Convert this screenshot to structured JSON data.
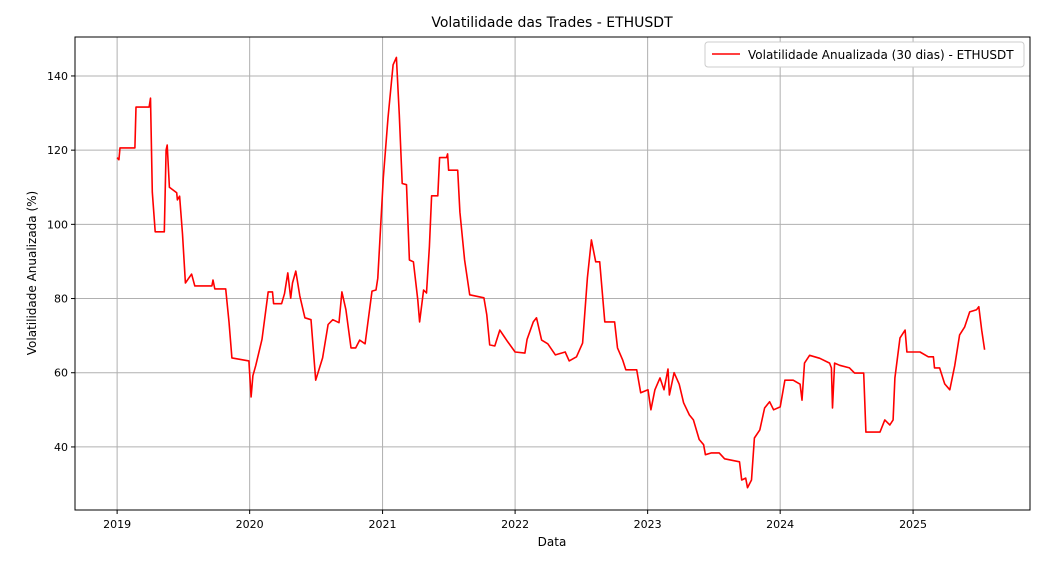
{
  "chart_data": {
    "type": "line",
    "title": "Volatilidade das Trades - ETHUSDT",
    "xlabel": "Data",
    "ylabel": "Volatilidade Anualizada (%)",
    "xlim": [
      "2018-09-07",
      "2025-11-19"
    ],
    "ylim": [
      23,
      150.5
    ],
    "x_ticks": [
      "2019",
      "2020",
      "2021",
      "2022",
      "2023",
      "2024",
      "2025"
    ],
    "y_ticks": [
      40,
      60,
      80,
      100,
      120,
      140
    ],
    "grid": true,
    "legend_position": "top-right",
    "series": [
      {
        "name": "Volatilidade Anualizada (30 dias) - ETHUSDT",
        "color": "#ff0000",
        "x": [
          "2019-01-01",
          "2019-01-06",
          "2019-01-09",
          "2019-02-19",
          "2019-02-22",
          "2019-03-30",
          "2019-04-03",
          "2019-04-08",
          "2019-04-16",
          "2019-05-11",
          "2019-05-16",
          "2019-05-19",
          "2019-05-25",
          "2019-06-14",
          "2019-06-16",
          "2019-06-22",
          "2019-06-30",
          "2019-07-08",
          "2019-07-25",
          "2019-08-03",
          "2019-09-19",
          "2019-09-22",
          "2019-09-27",
          "2019-10-27",
          "2019-11-05",
          "2019-11-13",
          "2019-12-30",
          "2020-01-05",
          "2020-01-10",
          "2020-01-18",
          "2020-02-04",
          "2020-02-21",
          "2020-03-04",
          "2020-03-07",
          "2020-03-29",
          "2020-04-06",
          "2020-04-15",
          "2020-04-23",
          "2020-04-28",
          "2020-05-07",
          "2020-05-18",
          "2020-06-01",
          "2020-06-18",
          "2020-07-01",
          "2020-07-20",
          "2020-08-04",
          "2020-08-17",
          "2020-09-03",
          "2020-09-11",
          "2020-09-22",
          "2020-10-06",
          "2020-10-19",
          "2020-10-30",
          "2020-11-14",
          "2020-12-03",
          "2020-12-14",
          "2020-12-19",
          "2021-01-03",
          "2021-01-16",
          "2021-01-30",
          "2021-02-08",
          "2021-02-16",
          "2021-02-24",
          "2021-03-08",
          "2021-03-16",
          "2021-03-27",
          "2021-04-08",
          "2021-04-13",
          "2021-04-24",
          "2021-05-02",
          "2021-05-10",
          "2021-05-16",
          "2021-06-02",
          "2021-06-07",
          "2021-06-26",
          "2021-06-29",
          "2021-07-02",
          "2021-07-27",
          "2021-08-02",
          "2021-08-15",
          "2021-08-29",
          "2021-10-07",
          "2021-10-15",
          "2021-10-23",
          "2021-11-06",
          "2021-11-20",
          "2021-12-01",
          "2021-12-12",
          "2022-01-01",
          "2022-01-28",
          "2022-02-03",
          "2022-02-20",
          "2022-03-01",
          "2022-03-15",
          "2022-04-01",
          "2022-04-22",
          "2022-05-19",
          "2022-05-30",
          "2022-06-19",
          "2022-07-06",
          "2022-07-19",
          "2022-07-30",
          "2022-08-11",
          "2022-08-22",
          "2022-09-05",
          "2022-10-02",
          "2022-10-10",
          "2022-10-24",
          "2022-11-02",
          "2022-12-02",
          "2022-12-13",
          "2023-01-02",
          "2023-01-10",
          "2023-01-21",
          "2023-02-04",
          "2023-02-15",
          "2023-02-26",
          "2023-03-02",
          "2023-03-15",
          "2023-03-29",
          "2023-04-10",
          "2023-04-26",
          "2023-05-07",
          "2023-05-23",
          "2023-06-04",
          "2023-06-09",
          "2023-06-26",
          "2023-07-17",
          "2023-08-01",
          "2023-09-11",
          "2023-09-17",
          "2023-09-28",
          "2023-10-03",
          "2023-10-14",
          "2023-10-22",
          "2023-11-06",
          "2023-11-19",
          "2023-12-03",
          "2023-12-14",
          "2024-01-01",
          "2024-01-14",
          "2024-02-06",
          "2024-02-25",
          "2024-03-01",
          "2024-03-08",
          "2024-03-22",
          "2024-04-19",
          "2024-05-16",
          "2024-05-21",
          "2024-05-24",
          "2024-05-30",
          "2024-06-13",
          "2024-07-10",
          "2024-07-24",
          "2024-08-18",
          "2024-08-24",
          "2024-10-02",
          "2024-10-15",
          "2024-10-29",
          "2024-11-07",
          "2024-11-12",
          "2024-11-26",
          "2024-12-10",
          "2024-12-15",
          "2025-01-20",
          "2025-02-12",
          "2025-02-26",
          "2025-03-01",
          "2025-03-15",
          "2025-03-29",
          "2025-04-12",
          "2025-04-26",
          "2025-05-09",
          "2025-05-23",
          "2025-06-06",
          "2025-06-25",
          "2025-07-01",
          "2025-07-09",
          "2025-07-17"
        ],
        "y": [
          118,
          117.4,
          120.6,
          120.6,
          131.6,
          131.6,
          134,
          108.7,
          98,
          98,
          120,
          121.4,
          110,
          108.5,
          106.6,
          107.6,
          97.4,
          84.2,
          86.6,
          83.4,
          83.4,
          85,
          82.6,
          82.6,
          73.7,
          64,
          63.2,
          53.5,
          59.2,
          62,
          69,
          81.8,
          81.8,
          78.6,
          78.6,
          81.3,
          86.9,
          80.1,
          84.2,
          87.4,
          80.7,
          74.8,
          74.3,
          58,
          64,
          73,
          74.3,
          73.5,
          81.8,
          77,
          66.7,
          66.7,
          68.8,
          67.8,
          82,
          82.3,
          85.5,
          112.5,
          128.7,
          143,
          145,
          129.5,
          111,
          110.7,
          90.4,
          89.9,
          79.6,
          73.7,
          82.3,
          81.5,
          94,
          107.7,
          107.7,
          118,
          118,
          119,
          114.6,
          114.6,
          103.3,
          90.4,
          81,
          80.2,
          75.6,
          67.5,
          67.2,
          71.5,
          69.9,
          68.3,
          65.6,
          65.3,
          69,
          73.7,
          74.8,
          68.8,
          67.8,
          64.8,
          65.6,
          63.2,
          64.3,
          68,
          85.6,
          95.8,
          89.9,
          89.9,
          73.7,
          73.7,
          66.7,
          63.5,
          60.8,
          60.8,
          54.6,
          55.4,
          50,
          55.4,
          58.6,
          55.4,
          61,
          54,
          60,
          56.9,
          51.9,
          48.6,
          47.3,
          42,
          40.6,
          37.9,
          38.4,
          38.4,
          36.8,
          36,
          31.1,
          31.6,
          29,
          31.1,
          42.4,
          44.6,
          50.5,
          52.2,
          50,
          50.8,
          58,
          58,
          56.9,
          52.6,
          62.6,
          64.7,
          63.9,
          62.6,
          61.3,
          50.5,
          62.6,
          62,
          61.3,
          59.9,
          59.9,
          44,
          44,
          47.3,
          45.9,
          47.3,
          58.6,
          69.4,
          71.5,
          65.6,
          65.6,
          64.3,
          64.3,
          61.3,
          61.3,
          57,
          55.4,
          62,
          70.2,
          72.3,
          76.4,
          77,
          77.8,
          71.5,
          66.2
        ]
      }
    ]
  }
}
